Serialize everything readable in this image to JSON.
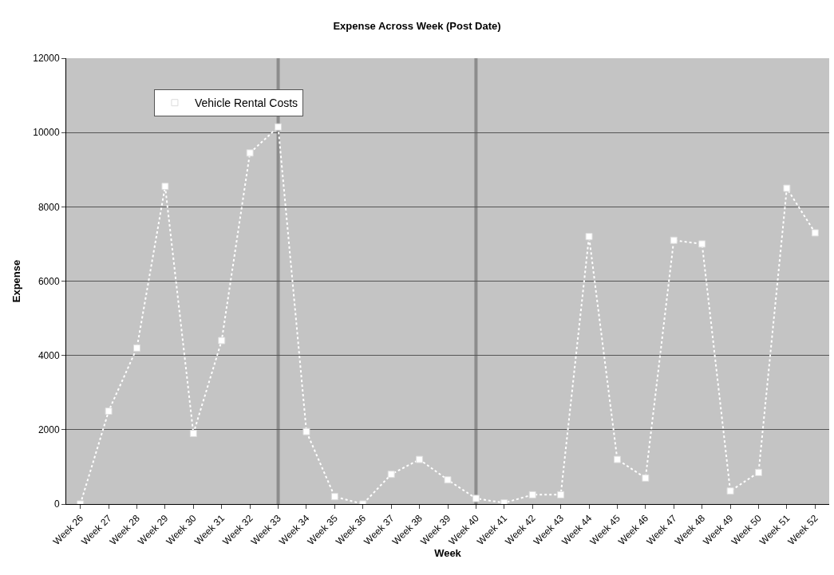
{
  "chart_data": {
    "type": "line",
    "title": "Expense Across Week (Post Date)",
    "xlabel": "Week",
    "ylabel": "Expense",
    "categories": [
      "Week 26",
      "Week 27",
      "Week 28",
      "Week 29",
      "Week 30",
      "Week 31",
      "Week 32",
      "Week 33",
      "Week 34",
      "Week 35",
      "Week 36",
      "Week 37",
      "Week 38",
      "Week 39",
      "Week 40",
      "Week 41",
      "Week 42",
      "Week 43",
      "Week 44",
      "Week 45",
      "Week 46",
      "Week 47",
      "Week 48",
      "Week 49",
      "Week 50",
      "Week 51",
      "Week 52"
    ],
    "series": [
      {
        "name": "Vehicle Rental Costs",
        "color": "#ffffff",
        "values": [
          0,
          2500,
          4200,
          8550,
          1900,
          4400,
          9450,
          10150,
          1950,
          200,
          0,
          800,
          1200,
          650,
          150,
          30,
          250,
          250,
          7200,
          1200,
          700,
          7100,
          7000,
          350,
          850,
          8500,
          7300
        ]
      }
    ],
    "ylim": [
      0,
      12000
    ],
    "yticks": [
      0,
      2000,
      4000,
      6000,
      8000,
      10000,
      12000
    ],
    "grid": "y",
    "legend": "top left",
    "marker": "square",
    "line_style": "dotted",
    "ref_lines": [
      {
        "axis": "x",
        "value": "Week 33",
        "color": "#8c8c8c"
      },
      {
        "axis": "x",
        "value": "Week 40",
        "color": "#8c8c8c"
      }
    ]
  }
}
